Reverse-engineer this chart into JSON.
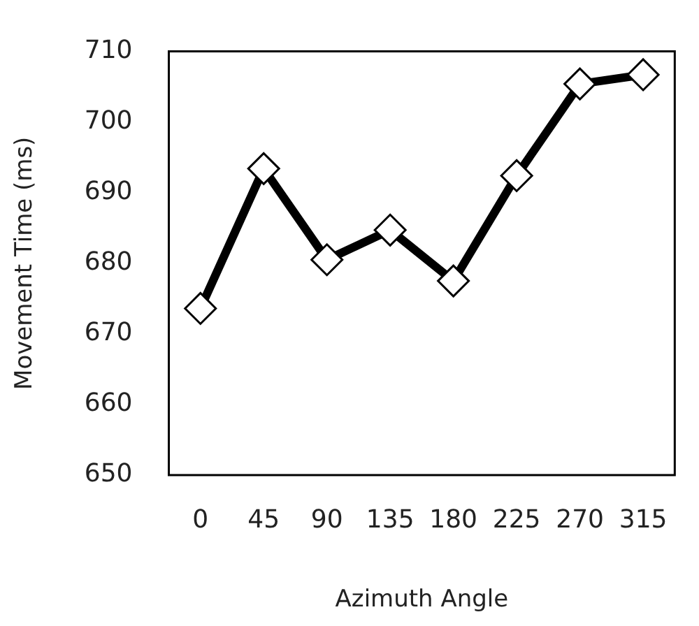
{
  "chart_data": {
    "type": "line",
    "xlabel": "Azimuth Angle",
    "ylabel": "Movement Time (ms)",
    "categories": [
      "0",
      "45",
      "90",
      "135",
      "180",
      "225",
      "270",
      "315"
    ],
    "series": [
      {
        "color": "#000000",
        "values": [
          673.6,
          693.4,
          680.5,
          684.7,
          677.5,
          692.4,
          705.4,
          706.7
        ]
      }
    ],
    "ylim": [
      650,
      710
    ],
    "yticks": [
      650,
      660,
      670,
      680,
      690,
      700,
      710
    ],
    "grid": false,
    "legend": false,
    "marker": "diamond",
    "line_style": "solid"
  }
}
